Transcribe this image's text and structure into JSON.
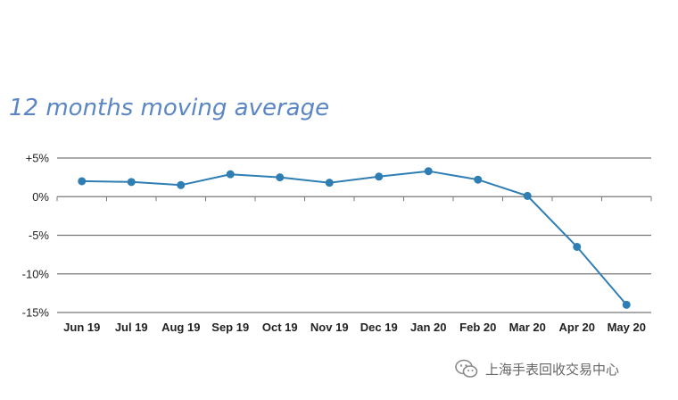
{
  "chart_data": {
    "type": "line",
    "title": "12 months moving average",
    "xlabel": "",
    "ylabel": "",
    "categories": [
      "Jun 19",
      "Jul 19",
      "Aug 19",
      "Sep 19",
      "Oct 19",
      "Nov 19",
      "Dec 19",
      "Jan 20",
      "Feb 20",
      "Mar 20",
      "Apr 20",
      "May 20"
    ],
    "series": [
      {
        "values": [
          2.0,
          1.9,
          1.5,
          2.9,
          2.5,
          1.8,
          2.6,
          3.3,
          2.2,
          0.1,
          -6.5,
          -14.0
        ]
      }
    ],
    "ylim": [
      -15,
      5
    ],
    "yticks": [
      5,
      0,
      -5,
      -10,
      -15
    ],
    "ytick_labels": [
      "+5%",
      "0%",
      "-5%",
      "-10%",
      "-15%"
    ],
    "grid": true,
    "legend": "none",
    "line_color": "#2f7eb3",
    "marker_color": "#2f7eb3",
    "grid_color": "#777777"
  },
  "watermark": {
    "text": "上海手表回收交易中心",
    "icon": "wechat-icon"
  }
}
